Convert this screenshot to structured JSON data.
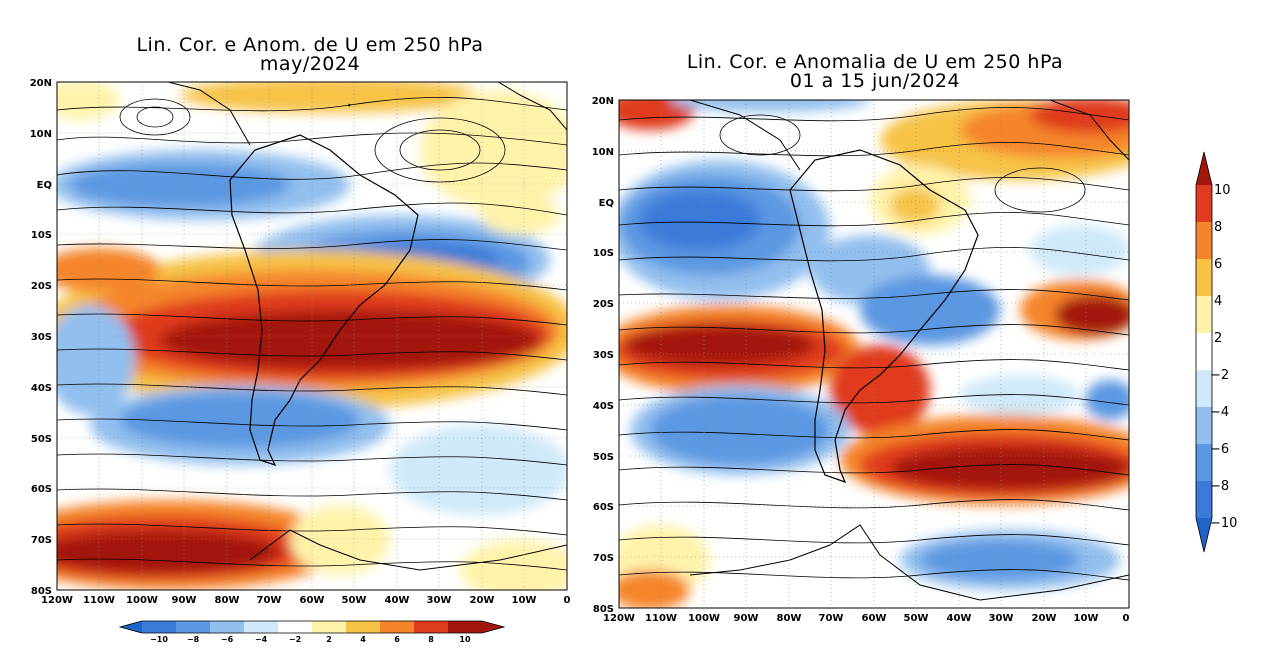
{
  "left_panel": {
    "title_line1": "Lin. Cor. e Anom. de U em 250 hPa",
    "title_line2": "may/2024",
    "y_ticks": [
      "20N",
      "10N",
      "EQ",
      "10S",
      "20S",
      "30S",
      "40S",
      "50S",
      "60S",
      "70S",
      "80S"
    ],
    "x_ticks": [
      "120W",
      "110W",
      "100W",
      "90W",
      "80W",
      "70W",
      "60W",
      "50W",
      "40W",
      "30W",
      "20W",
      "10W",
      "0"
    ]
  },
  "right_panel": {
    "title_line1": "Lin. Cor. e Anomalia de U em 250 hPa",
    "title_line2": "01 a 15 jun/2024",
    "y_ticks": [
      "20N",
      "10N",
      "EQ",
      "10S",
      "20S",
      "30S",
      "40S",
      "50S",
      "60S",
      "70S",
      "80S"
    ],
    "x_ticks": [
      "120W",
      "110W",
      "100W",
      "90W",
      "80W",
      "70W",
      "60W",
      "50W",
      "40W",
      "30W",
      "20W",
      "10W",
      "0"
    ]
  },
  "colorbar_horizontal": {
    "labels": [
      "−10",
      "−8",
      "−6",
      "−4",
      "−2",
      "2",
      "4",
      "6",
      "8",
      "10"
    ]
  },
  "colorbar_vertical": {
    "labels": [
      "10",
      "8",
      "6",
      "4",
      "2",
      "−2",
      "−4",
      "−6",
      "−8",
      "−10"
    ]
  },
  "colors": {
    "c_lt_m10": "#1f64c8",
    "c_m10_m8": "#3a7ad8",
    "c_m8_m6": "#5b97e2",
    "c_m6_m4": "#92bfee",
    "c_m4_m2": "#cfe9f8",
    "c_m2_2": "#ffffff",
    "c_2_4": "#fff3ab",
    "c_4_6": "#f6c347",
    "c_6_8": "#f5852a",
    "c_8_10": "#df3b1f",
    "c_gt_10": "#a3160b"
  }
}
